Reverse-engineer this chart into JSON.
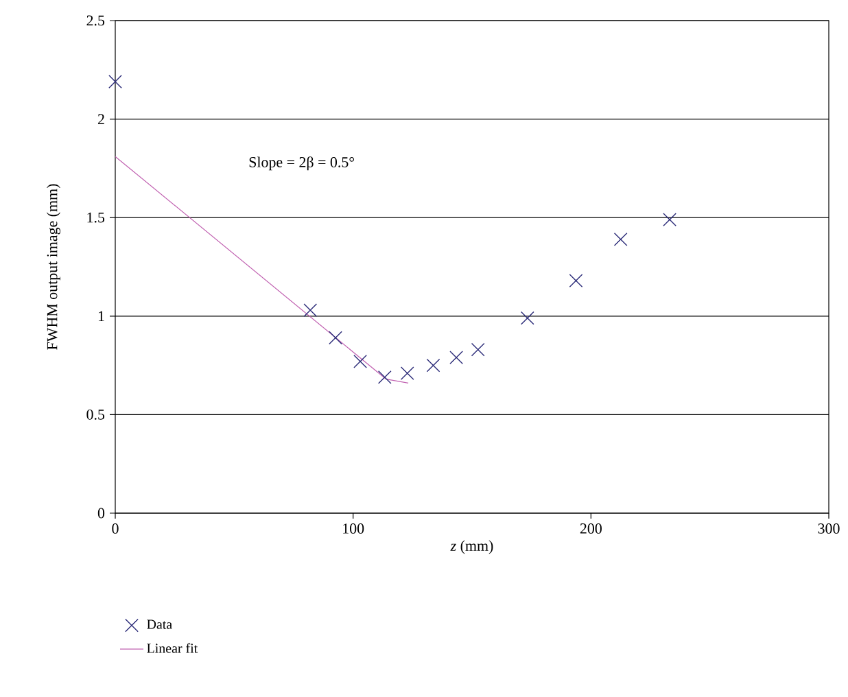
{
  "chart_data": {
    "type": "scatter",
    "xlabel": "*z* (mm)",
    "ylabel": "FWHM output image (mm)",
    "annotations": [
      "Slope = 2β = 0.5°"
    ],
    "series": [
      {
        "name": "Data",
        "marker": "cross",
        "color": "#2b2b78",
        "x": [
          0,
          82,
          92.6,
          103,
          113.3,
          122.8,
          133.7,
          143.4,
          152.5,
          173.3,
          193.7,
          212.5,
          233.1
        ],
        "values": [
          2.19,
          1.03,
          0.89,
          0.77,
          0.69,
          0.71,
          0.75,
          0.79,
          0.83,
          0.99,
          1.18,
          1.39,
          1.49
        ]
      },
      {
        "name": "Linear fit",
        "type": "line",
        "marker": "none",
        "color": "#c060b0",
        "x": [
          0,
          113.9,
          123.2
        ],
        "values": [
          1.81,
          0.68,
          0.66
        ]
      }
    ],
    "xlim": [
      0,
      300
    ],
    "ylim": [
      0,
      2.5
    ],
    "xticks": [
      0,
      100,
      200,
      300
    ],
    "yticks": [
      0,
      0.5,
      1,
      1.5,
      2,
      2.5
    ],
    "grid": "y",
    "legend": "bottom"
  }
}
